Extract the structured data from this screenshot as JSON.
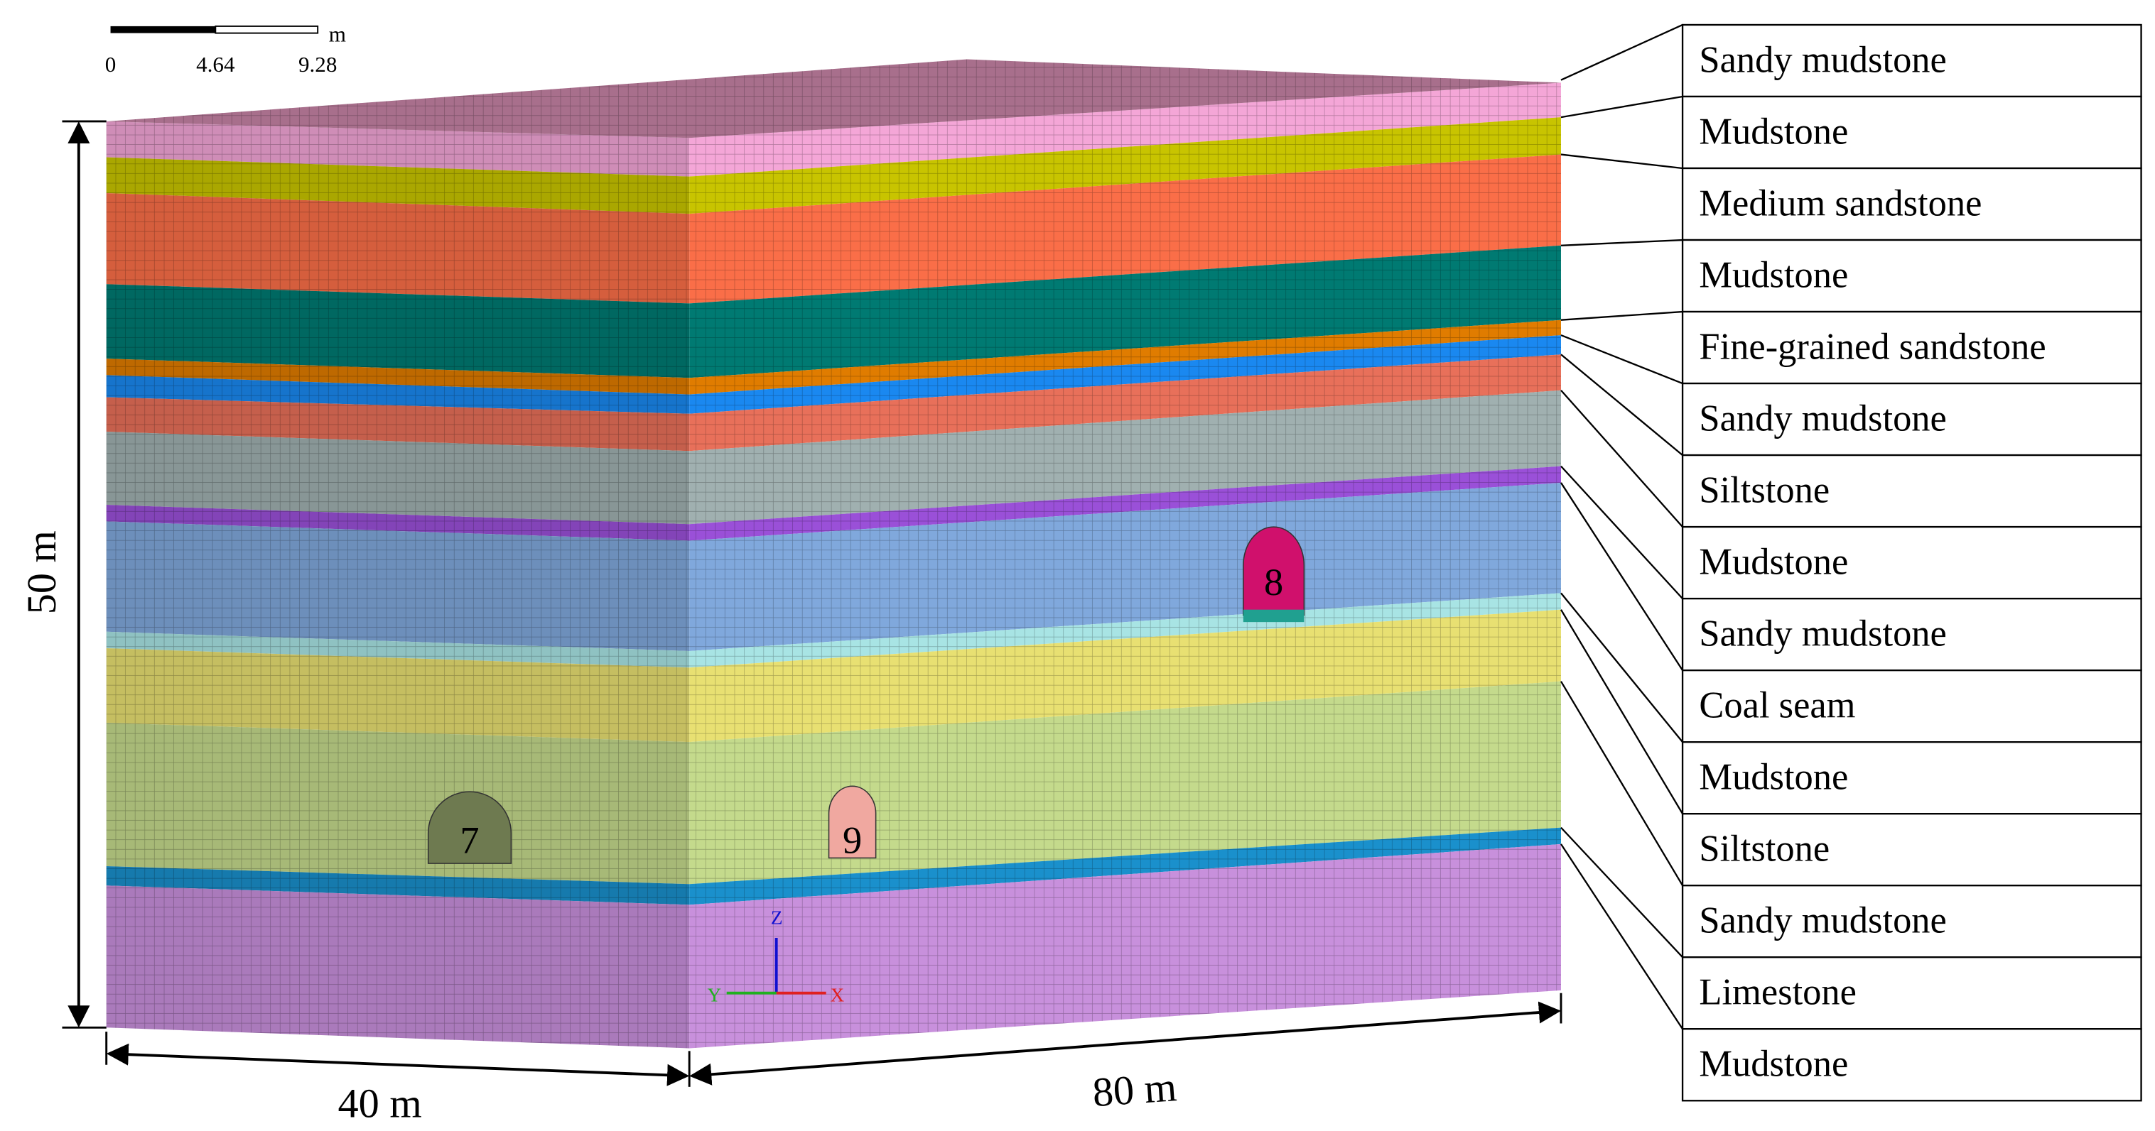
{
  "scale_bar": {
    "ticks": [
      "0",
      "4.64",
      "9.28"
    ],
    "unit": "m"
  },
  "dimensions": {
    "height": "50 m",
    "width": "40 m",
    "length": "80 m"
  },
  "roadways": [
    "7",
    "8",
    "9"
  ],
  "axes": [
    "Z",
    "Y",
    "X"
  ],
  "layers": [
    "Sandy mudstone",
    "Mudstone",
    "Medium sandstone",
    "Mudstone",
    "Fine-grained sandstone",
    "Sandy mudstone",
    "Siltstone",
    "Mudstone",
    "Sandy mudstone",
    "Coal seam",
    "Mudstone",
    "Siltstone",
    "Sandy mudstone",
    "Limestone",
    "Mudstone"
  ]
}
